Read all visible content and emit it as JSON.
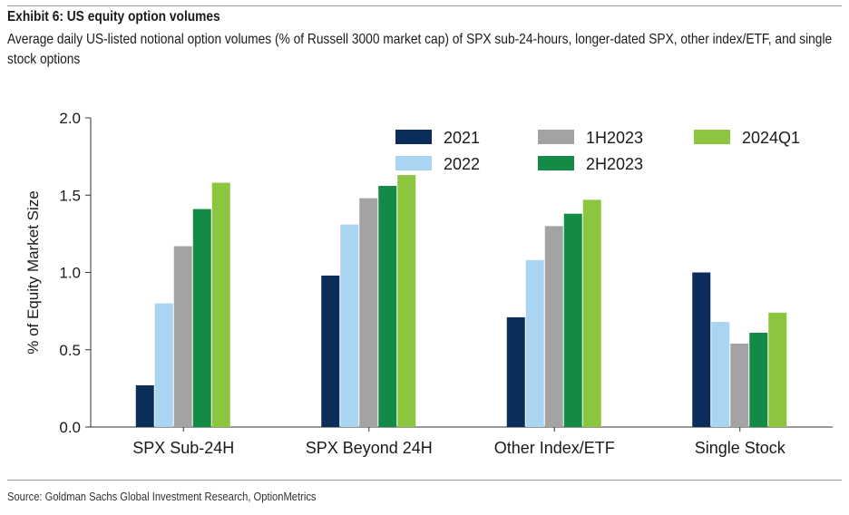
{
  "header": {
    "title": "Exhibit 6: US equity option volumes",
    "subtitle": "Average daily US-listed notional option volumes (% of Russell 3000 market cap) of SPX sub-24-hours, longer-dated SPX, other index/ETF, and single stock options"
  },
  "footer": {
    "source": "Source: Goldman Sachs Global Investment Research, OptionMetrics"
  },
  "chart_data": {
    "type": "bar",
    "title": "Exhibit 6: US equity option volumes",
    "xlabel": "",
    "ylabel": "% of Equity Market Size",
    "ylim": [
      0,
      2.0
    ],
    "yticks": [
      "0.0",
      "0.5",
      "1.0",
      "1.5",
      "2.0"
    ],
    "grid": false,
    "legend_position": "top-right",
    "categories": [
      "SPX Sub-24H",
      "SPX Beyond 24H",
      "Other Index/ETF",
      "Single Stock"
    ],
    "series": [
      {
        "name": "2021",
        "color": "#0b2d5a",
        "values": [
          0.27,
          0.98,
          0.71,
          1.0
        ]
      },
      {
        "name": "2022",
        "color": "#a9d4f2",
        "values": [
          0.8,
          1.31,
          1.08,
          0.68
        ]
      },
      {
        "name": "1H2023",
        "color": "#a3a3a3",
        "values": [
          1.17,
          1.48,
          1.3,
          0.54
        ]
      },
      {
        "name": "2H2023",
        "color": "#138a46",
        "values": [
          1.41,
          1.56,
          1.38,
          0.61
        ]
      },
      {
        "name": "2024Q1",
        "color": "#8cc63e",
        "values": [
          1.58,
          1.63,
          1.47,
          0.74
        ]
      }
    ]
  }
}
